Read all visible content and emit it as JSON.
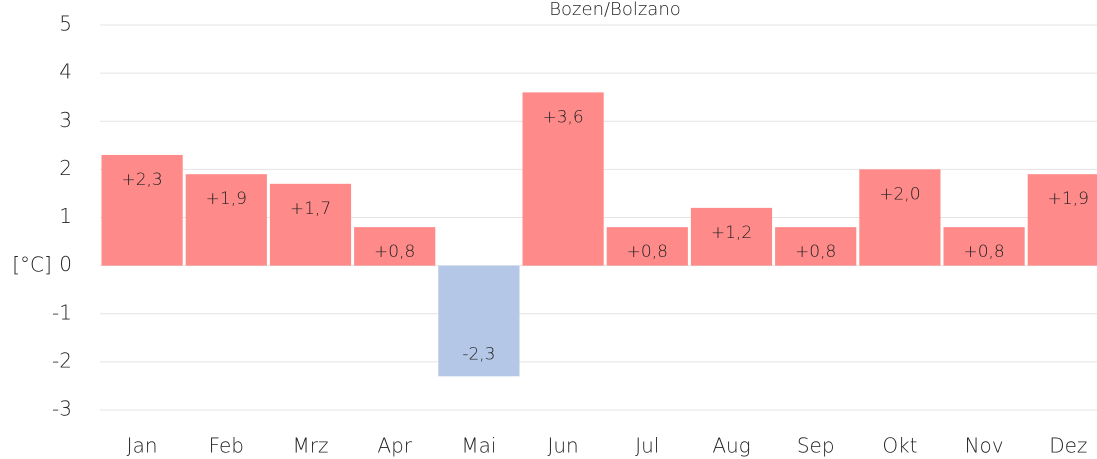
{
  "chart_data": {
    "type": "bar",
    "title": "Bozen/Bolzano",
    "y_label": "[°C]",
    "categories": [
      "Jan",
      "Feb",
      "Mrz",
      "Apr",
      "Mai",
      "Jun",
      "Jul",
      "Aug",
      "Sep",
      "Okt",
      "Nov",
      "Dez"
    ],
    "values": [
      2.3,
      1.9,
      1.7,
      0.8,
      -2.3,
      3.6,
      0.8,
      1.2,
      0.8,
      2.0,
      0.8,
      1.9
    ],
    "value_labels": [
      "+2,3",
      "+1,9",
      "+1,7",
      "+0,8",
      "-2,3",
      "+3,6",
      "+0,8",
      "+1,2",
      "+0,8",
      "+2,0",
      "+0,8",
      "+1,9"
    ],
    "colors": [
      "#ff8a8a",
      "#ff8a8a",
      "#ff8a8a",
      "#ff8a8a",
      "#b4c7e7",
      "#ff8a8a",
      "#ff8a8a",
      "#ff8a8a",
      "#ff8a8a",
      "#ff8a8a",
      "#ff8a8a",
      "#ff8a8a"
    ],
    "ylim": [
      -3,
      5
    ],
    "yticks": [
      -3,
      -2,
      -1,
      0,
      1,
      2,
      3,
      4,
      5
    ],
    "grid": true
  }
}
